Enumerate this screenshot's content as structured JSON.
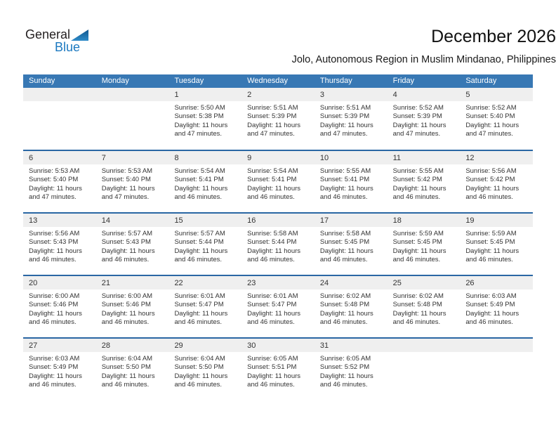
{
  "logo": {
    "part1": "General",
    "part2": "Blue"
  },
  "header": {
    "title": "December 2026",
    "subtitle": "Jolo, Autonomous Region in Muslim Mindanao, Philippines"
  },
  "labels": {
    "sunrise": "Sunrise:",
    "sunset": "Sunset:",
    "daylight": "Daylight:"
  },
  "colors": {
    "header_bg": "#3878b4",
    "week_divider": "#2a67a4",
    "day_strip_bg": "#efefef",
    "logo_blue": "#1c79c0",
    "logo_triangle_dark": "#10568e",
    "logo_triangle_light": "#2f8cc9",
    "body_text": "#333333"
  },
  "calendar": {
    "weekdays": [
      "Sunday",
      "Monday",
      "Tuesday",
      "Wednesday",
      "Thursday",
      "Friday",
      "Saturday"
    ],
    "weeks": [
      [
        null,
        null,
        {
          "day": "1",
          "sunrise": "5:50 AM",
          "sunset": "5:38 PM",
          "daylight": "11 hours and 47 minutes."
        },
        {
          "day": "2",
          "sunrise": "5:51 AM",
          "sunset": "5:39 PM",
          "daylight": "11 hours and 47 minutes."
        },
        {
          "day": "3",
          "sunrise": "5:51 AM",
          "sunset": "5:39 PM",
          "daylight": "11 hours and 47 minutes."
        },
        {
          "day": "4",
          "sunrise": "5:52 AM",
          "sunset": "5:39 PM",
          "daylight": "11 hours and 47 minutes."
        },
        {
          "day": "5",
          "sunrise": "5:52 AM",
          "sunset": "5:40 PM",
          "daylight": "11 hours and 47 minutes."
        }
      ],
      [
        {
          "day": "6",
          "sunrise": "5:53 AM",
          "sunset": "5:40 PM",
          "daylight": "11 hours and 47 minutes."
        },
        {
          "day": "7",
          "sunrise": "5:53 AM",
          "sunset": "5:40 PM",
          "daylight": "11 hours and 47 minutes."
        },
        {
          "day": "8",
          "sunrise": "5:54 AM",
          "sunset": "5:41 PM",
          "daylight": "11 hours and 46 minutes."
        },
        {
          "day": "9",
          "sunrise": "5:54 AM",
          "sunset": "5:41 PM",
          "daylight": "11 hours and 46 minutes."
        },
        {
          "day": "10",
          "sunrise": "5:55 AM",
          "sunset": "5:41 PM",
          "daylight": "11 hours and 46 minutes."
        },
        {
          "day": "11",
          "sunrise": "5:55 AM",
          "sunset": "5:42 PM",
          "daylight": "11 hours and 46 minutes."
        },
        {
          "day": "12",
          "sunrise": "5:56 AM",
          "sunset": "5:42 PM",
          "daylight": "11 hours and 46 minutes."
        }
      ],
      [
        {
          "day": "13",
          "sunrise": "5:56 AM",
          "sunset": "5:43 PM",
          "daylight": "11 hours and 46 minutes."
        },
        {
          "day": "14",
          "sunrise": "5:57 AM",
          "sunset": "5:43 PM",
          "daylight": "11 hours and 46 minutes."
        },
        {
          "day": "15",
          "sunrise": "5:57 AM",
          "sunset": "5:44 PM",
          "daylight": "11 hours and 46 minutes."
        },
        {
          "day": "16",
          "sunrise": "5:58 AM",
          "sunset": "5:44 PM",
          "daylight": "11 hours and 46 minutes."
        },
        {
          "day": "17",
          "sunrise": "5:58 AM",
          "sunset": "5:45 PM",
          "daylight": "11 hours and 46 minutes."
        },
        {
          "day": "18",
          "sunrise": "5:59 AM",
          "sunset": "5:45 PM",
          "daylight": "11 hours and 46 minutes."
        },
        {
          "day": "19",
          "sunrise": "5:59 AM",
          "sunset": "5:45 PM",
          "daylight": "11 hours and 46 minutes."
        }
      ],
      [
        {
          "day": "20",
          "sunrise": "6:00 AM",
          "sunset": "5:46 PM",
          "daylight": "11 hours and 46 minutes."
        },
        {
          "day": "21",
          "sunrise": "6:00 AM",
          "sunset": "5:46 PM",
          "daylight": "11 hours and 46 minutes."
        },
        {
          "day": "22",
          "sunrise": "6:01 AM",
          "sunset": "5:47 PM",
          "daylight": "11 hours and 46 minutes."
        },
        {
          "day": "23",
          "sunrise": "6:01 AM",
          "sunset": "5:47 PM",
          "daylight": "11 hours and 46 minutes."
        },
        {
          "day": "24",
          "sunrise": "6:02 AM",
          "sunset": "5:48 PM",
          "daylight": "11 hours and 46 minutes."
        },
        {
          "day": "25",
          "sunrise": "6:02 AM",
          "sunset": "5:48 PM",
          "daylight": "11 hours and 46 minutes."
        },
        {
          "day": "26",
          "sunrise": "6:03 AM",
          "sunset": "5:49 PM",
          "daylight": "11 hours and 46 minutes."
        }
      ],
      [
        {
          "day": "27",
          "sunrise": "6:03 AM",
          "sunset": "5:49 PM",
          "daylight": "11 hours and 46 minutes."
        },
        {
          "day": "28",
          "sunrise": "6:04 AM",
          "sunset": "5:50 PM",
          "daylight": "11 hours and 46 minutes."
        },
        {
          "day": "29",
          "sunrise": "6:04 AM",
          "sunset": "5:50 PM",
          "daylight": "11 hours and 46 minutes."
        },
        {
          "day": "30",
          "sunrise": "6:05 AM",
          "sunset": "5:51 PM",
          "daylight": "11 hours and 46 minutes."
        },
        {
          "day": "31",
          "sunrise": "6:05 AM",
          "sunset": "5:52 PM",
          "daylight": "11 hours and 46 minutes."
        },
        null,
        null
      ]
    ]
  }
}
